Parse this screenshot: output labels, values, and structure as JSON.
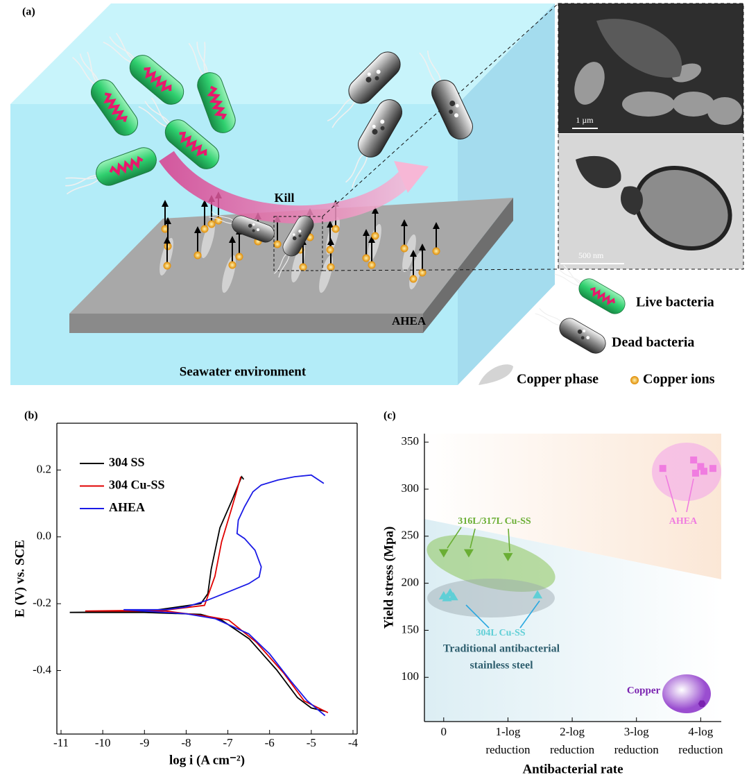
{
  "panel_labels": [
    "(a)",
    "(b)",
    "(c)"
  ],
  "illustration": {
    "kill_label": "Kill",
    "substrate_label": "AHEA",
    "environment_label": "Seawater environment",
    "scale_bars": [
      "1 µm",
      "500 nm"
    ],
    "legend": [
      "Live bacteria",
      "Dead bacteria",
      "Copper phase",
      "Copper ions"
    ]
  },
  "chart_data": [
    {
      "type": "line",
      "xlabel": "log i (A cm⁻²)",
      "ylabel": "E (V) vs. SCE",
      "xlim": [
        -11.1,
        -3.9
      ],
      "xticks": [
        -11,
        -10,
        -9,
        -8,
        -7,
        -6,
        -5,
        -4
      ],
      "ylim": [
        -0.59,
        0.34
      ],
      "yticks": [
        -0.4,
        -0.2,
        {
          "value": 0,
          "label": "0.0"
        },
        0.2
      ],
      "legend": "upper left",
      "series": [
        {
          "name": "304 SS",
          "color": "#000000",
          "x": [
            -4.67,
            -5.0,
            -5.33,
            -5.83,
            -6.49,
            -7.15,
            -7.65,
            -9.0,
            -10.79,
            -9.0,
            -7.65,
            -7.48,
            -7.4,
            -7.19,
            -6.9,
            -6.67,
            -6.62
          ],
          "values": [
            -0.522,
            -0.512,
            -0.481,
            -0.398,
            -0.305,
            -0.249,
            -0.232,
            -0.226,
            -0.226,
            -0.224,
            -0.2,
            -0.17,
            -0.097,
            0.027,
            0.11,
            0.18,
            0.172
          ]
        },
        {
          "name": "304 Cu-SS",
          "color": "#e00000",
          "x": [
            -4.6,
            -5.17,
            -5.66,
            -6.32,
            -6.98,
            -7.48,
            -8.5,
            -10.42,
            -8.5,
            -7.56,
            -7.31,
            -7.15,
            -6.9,
            -6.69
          ],
          "values": [
            -0.526,
            -0.491,
            -0.408,
            -0.315,
            -0.249,
            -0.238,
            -0.222,
            -0.222,
            -0.219,
            -0.205,
            -0.118,
            -0.015,
            0.089,
            0.18
          ]
        },
        {
          "name": "AHEA",
          "color": "#1a1ae6",
          "x": [
            -4.67,
            -5.1,
            -5.5,
            -6.0,
            -6.5,
            -7.3,
            -8.0,
            -9.5,
            -8.5,
            -8.0,
            -7.5,
            -7.0,
            -6.5,
            -6.25,
            -6.2,
            -6.35,
            -6.6,
            -6.78,
            -6.75,
            -6.6,
            -6.4,
            -6.2,
            -5.8,
            -5.4,
            -5.0,
            -4.7
          ],
          "values": [
            -0.535,
            -0.49,
            -0.43,
            -0.35,
            -0.29,
            -0.245,
            -0.23,
            -0.218,
            -0.218,
            -0.21,
            -0.19,
            -0.165,
            -0.14,
            -0.12,
            -0.09,
            -0.04,
            -0.005,
            0.01,
            0.05,
            0.09,
            0.135,
            0.155,
            0.17,
            0.18,
            0.185,
            0.16
          ]
        }
      ]
    },
    {
      "type": "scatter",
      "xlabel": "Antibacterial rate",
      "ylabel": "Yield stress (Mpa)",
      "xlim": [
        -0.3,
        4.32
      ],
      "xticks": [
        0,
        {
          "value": 1,
          "label": "1-log reduction"
        },
        {
          "value": 2,
          "label": "2-log reduction"
        },
        {
          "value": 3,
          "label": "3-log reduction"
        },
        {
          "value": 4,
          "label": "4-log reduction"
        }
      ],
      "ylim": [
        53,
        359
      ],
      "yticks": [
        100,
        150,
        200,
        250,
        300,
        350
      ],
      "annotation": [
        "Traditional antibacterial",
        "stainless steel"
      ],
      "series": [
        {
          "name": "316L/317L Cu-SS",
          "color": "#6aae34",
          "marker": "triangle-down",
          "x": [
            0,
            0.39,
            1.0
          ],
          "values": [
            232,
            232,
            228
          ]
        },
        {
          "name": "304L Cu-SS",
          "color": "#5fcfd6",
          "marker": "triangle-up",
          "x": [
            0,
            0.05,
            0.1,
            0.15,
            1.46
          ],
          "values": [
            187,
            185,
            190,
            186,
            188
          ]
        },
        {
          "name": "AHEA",
          "color": "#f07ce0",
          "marker": "square",
          "x": [
            3.41,
            3.89,
            4.0,
            3.92,
            4.05,
            4.19
          ],
          "values": [
            322,
            331,
            324,
            317,
            319,
            322
          ]
        },
        {
          "name": "Copper",
          "color": "#7a22b0",
          "marker": "hexagon",
          "x": [
            4.02
          ],
          "values": [
            72
          ]
        }
      ]
    }
  ]
}
